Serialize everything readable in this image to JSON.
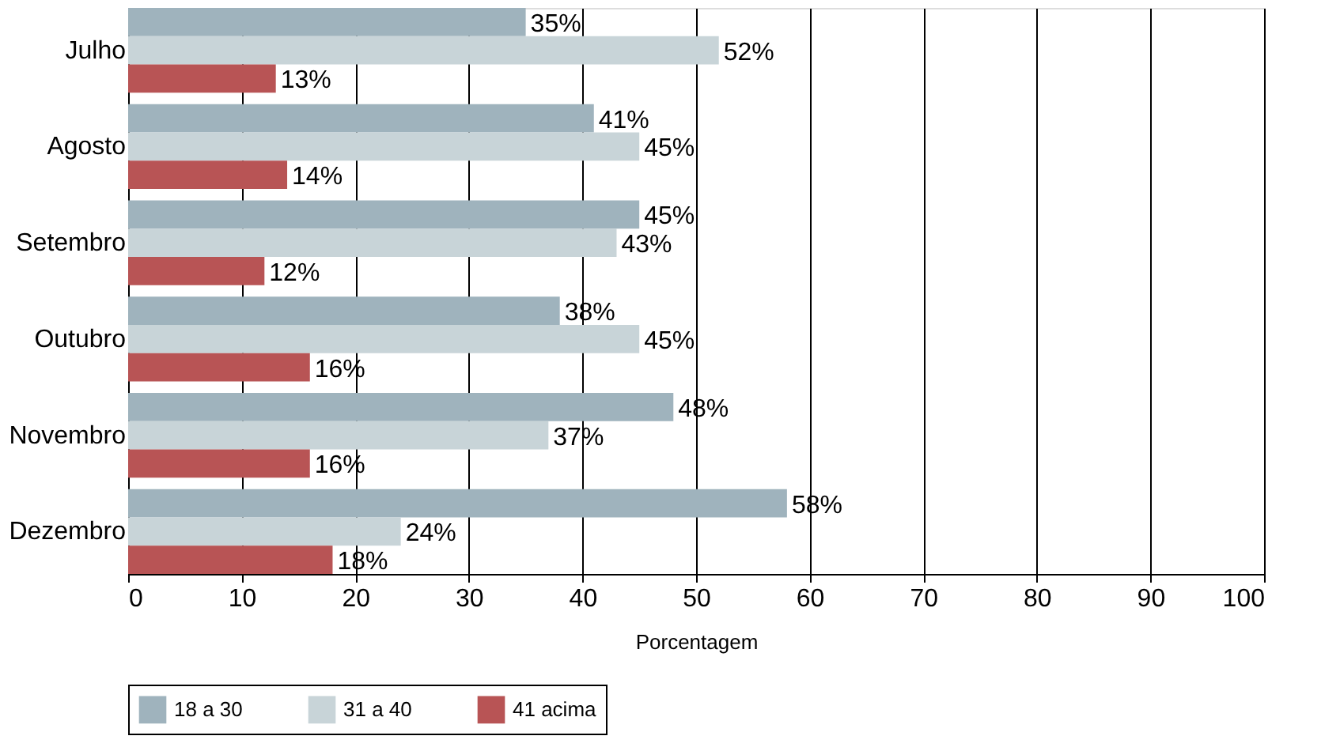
{
  "chart_data": {
    "type": "bar",
    "orientation": "horizontal",
    "xlabel": "Porcentagem",
    "categories": [
      "Julho",
      "Agosto",
      "Setembro",
      "Outubro",
      "Novembro",
      "Dezembro"
    ],
    "series": [
      {
        "name": "18 a 30",
        "color": "#9fb3bd",
        "values": [
          35,
          41,
          45,
          38,
          48,
          58
        ],
        "value_labels": [
          "35%",
          "41%",
          "45%",
          "38%",
          "48%",
          "58%"
        ]
      },
      {
        "name": "31 a 40",
        "color": "#c8d4d8",
        "values": [
          52,
          45,
          43,
          45,
          37,
          24
        ],
        "value_labels": [
          "52%",
          "45%",
          "43%",
          "45%",
          "37%",
          "24%"
        ]
      },
      {
        "name": "41 acima",
        "color": "#b85455",
        "values": [
          13,
          14,
          12,
          16,
          16,
          18
        ],
        "value_labels": [
          "13%",
          "14%",
          "12%",
          "16%",
          "16%",
          "18%"
        ]
      }
    ],
    "xlim": [
      0,
      100
    ],
    "xticks": [
      0,
      10,
      20,
      30,
      40,
      50,
      60,
      70,
      80,
      90,
      100
    ],
    "grid": "x",
    "legend": "bottom"
  }
}
